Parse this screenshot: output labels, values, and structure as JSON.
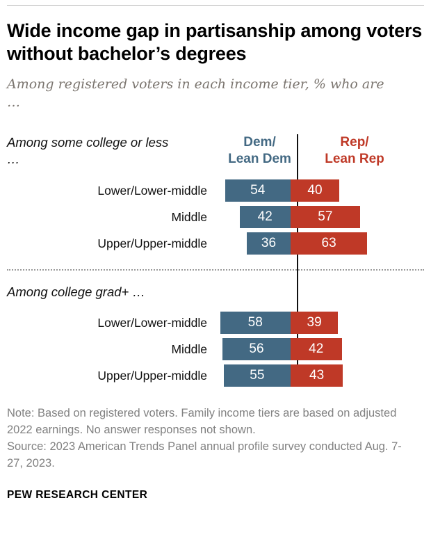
{
  "header": {
    "title": "Wide income gap in partisanship among voters without bachelor’s degrees",
    "subtitle": "Among registered voters in each income tier, % who are …"
  },
  "chart_data": {
    "type": "bar",
    "subtype": "diverging-horizontal",
    "value_format": "percent",
    "xlim": [
      0,
      100
    ],
    "axis": "vertical center baseline between Dem and Rep bars",
    "series_labels": {
      "dem": "Dem/\nLean Dem",
      "rep": "Rep/\nLean Rep"
    },
    "colors": {
      "dem": "#436983",
      "rep": "#bf3927"
    },
    "groups": [
      {
        "label": "Among some college or less …",
        "rows": [
          {
            "label": "Lower/Lower-middle",
            "dem": 54,
            "rep": 40
          },
          {
            "label": "Middle",
            "dem": 42,
            "rep": 57
          },
          {
            "label": "Upper/Upper-middle",
            "dem": 36,
            "rep": 63
          }
        ]
      },
      {
        "label": "Among college grad+ …",
        "rows": [
          {
            "label": "Lower/Lower-middle",
            "dem": 58,
            "rep": 39
          },
          {
            "label": "Middle",
            "dem": 56,
            "rep": 42
          },
          {
            "label": "Upper/Upper-middle",
            "dem": 55,
            "rep": 43
          }
        ]
      }
    ]
  },
  "footer": {
    "note": "Note: Based on registered voters. Family income tiers are based on adjusted 2022 earnings. No answer responses not shown.",
    "source": "Source: 2023 American Trends Panel annual profile survey conducted Aug. 7-27, 2023.",
    "brand": "PEW RESEARCH CENTER"
  }
}
